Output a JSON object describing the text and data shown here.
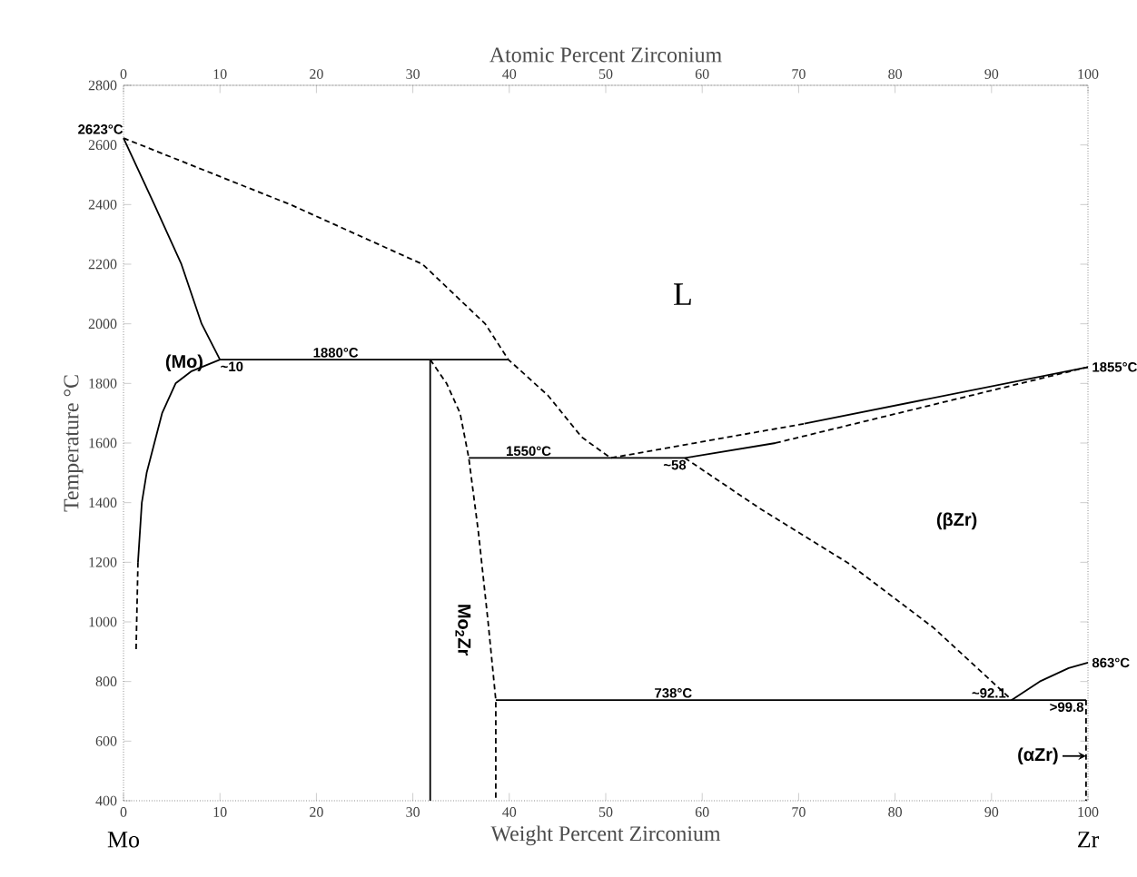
{
  "chart_data": {
    "type": "line",
    "xlabel": "Weight Percent Zirconium",
    "ylabel": "Temperature °C",
    "x2label": "Atomic Percent Zirconium",
    "xlim": [
      0,
      100
    ],
    "ylim": [
      400,
      2800
    ],
    "xticks": [
      0,
      10,
      20,
      30,
      40,
      50,
      60,
      70,
      80,
      90,
      100
    ],
    "yticks": [
      400,
      600,
      800,
      1000,
      1200,
      1400,
      1600,
      1800,
      2000,
      2200,
      2400,
      2600,
      2800
    ],
    "x2lim": [
      0,
      100
    ],
    "x2ticks": [
      0,
      10,
      20,
      30,
      40,
      50,
      60,
      70,
      80,
      90,
      100
    ],
    "grid": false,
    "legend": false,
    "marker": "none",
    "series": [
      {
        "color": "#000000",
        "line_style": "dashed",
        "x": [
          0,
          17.3,
          31,
          37.5,
          39.9,
          44,
          47.5,
          50.5,
          70.6
        ],
        "values": [
          2623,
          2400,
          2200,
          2000,
          1880,
          1760,
          1620,
          1550,
          1665
        ]
      },
      {
        "color": "#000000",
        "line_style": "solid",
        "x": [
          0,
          3.2,
          6,
          8.1,
          10
        ],
        "values": [
          2623,
          2400,
          2200,
          2000,
          1880
        ]
      },
      {
        "color": "#000000",
        "line_style": "solid",
        "x": [
          1.5,
          1.9,
          2.4,
          3.2,
          4,
          5.4,
          7,
          10,
          39.9
        ],
        "values": [
          1200,
          1400,
          1500,
          1600,
          1700,
          1800,
          1840,
          1880,
          1880
        ]
      },
      {
        "color": "#000000",
        "line_style": "dashed",
        "x": [
          1.5,
          1.3
        ],
        "values": [
          1200,
          900
        ]
      },
      {
        "color": "#000000",
        "line_style": "solid",
        "x": [
          31.8,
          31.8
        ],
        "values": [
          1880,
          400
        ]
      },
      {
        "color": "#000000",
        "line_style": "dashed",
        "x": [
          31.8,
          33.5,
          34.9,
          35.8,
          36.8,
          37.8,
          38.6,
          38.6
        ],
        "values": [
          1880,
          1800,
          1700,
          1550,
          1300,
          1000,
          738,
          400
        ]
      },
      {
        "color": "#000000",
        "line_style": "solid",
        "x": [
          35.8,
          58.2,
          67.6
        ],
        "values": [
          1550,
          1550,
          1600
        ]
      },
      {
        "color": "#000000",
        "line_style": "solid",
        "x": [
          70.6,
          100
        ],
        "values": [
          1665,
          1855
        ]
      },
      {
        "color": "#000000",
        "line_style": "dashed",
        "x": [
          67.6,
          100
        ],
        "values": [
          1600,
          1855
        ]
      },
      {
        "color": "#000000",
        "line_style": "dashed",
        "x": [
          58.2,
          66,
          75.1,
          84,
          92.1
        ],
        "values": [
          1550,
          1380,
          1198,
          980,
          738
        ]
      },
      {
        "color": "#000000",
        "line_style": "solid",
        "x": [
          38.6,
          99.8
        ],
        "values": [
          738,
          738
        ]
      },
      {
        "color": "#000000",
        "line_style": "solid",
        "x": [
          92.1,
          95,
          98,
          100
        ],
        "values": [
          738,
          800,
          845,
          863
        ]
      },
      {
        "color": "#000000",
        "line_style": "dashed",
        "x": [
          99.8,
          99.8
        ],
        "values": [
          738,
          400
        ]
      }
    ],
    "annotations": [
      {
        "text": "2623°C",
        "x": 0,
        "y": 2623
      },
      {
        "text": "1880°C",
        "x": 22,
        "y": 1880
      },
      {
        "text": "~10",
        "x": 10,
        "y": 1880
      },
      {
        "text": "1550°C",
        "x": 42,
        "y": 1550
      },
      {
        "text": "~58",
        "x": 58.2,
        "y": 1550
      },
      {
        "text": "1855°C",
        "x": 100,
        "y": 1855
      },
      "L",
      "(Mo)",
      "Mo$_{2}$Zr",
      "(βZr)",
      {
        "text": "738°C",
        "x": 57,
        "y": 738
      },
      {
        "text": "~92.1",
        "x": 92.1,
        "y": 738
      },
      {
        "text": ">99.8",
        "x": 99.8,
        "y": 738
      },
      {
        "text": "863°C",
        "x": 100,
        "y": 863
      },
      {
        "text": "(αZr)",
        "x": 99.8,
        "y": 550
      },
      "Mo",
      "Zr"
    ]
  }
}
